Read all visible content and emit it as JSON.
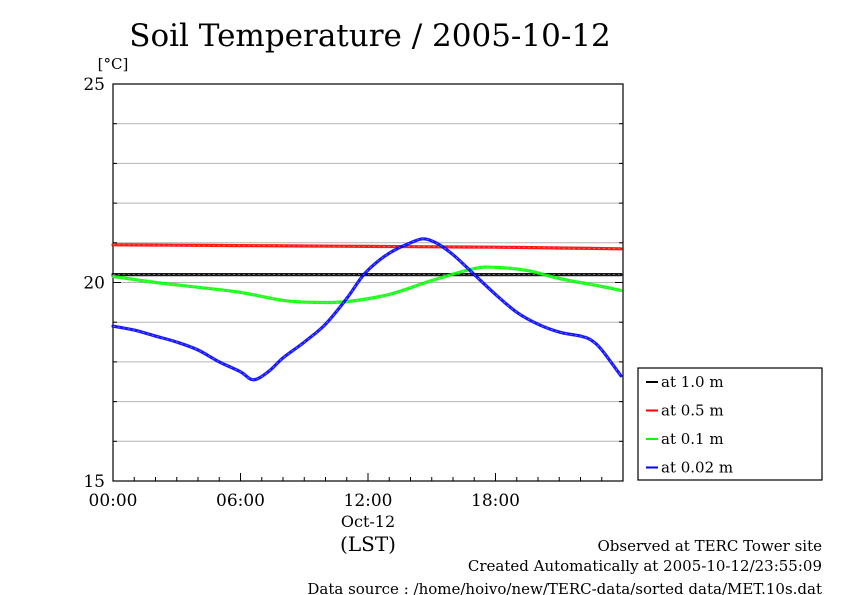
{
  "chart_data": {
    "type": "line",
    "title": "Soil Temperature / 2005-10-12",
    "ylabel": "[°C]",
    "xlabel": "(LST)",
    "x_date_label": "Oct-12",
    "xlim": [
      0,
      24
    ],
    "ylim": [
      15,
      25
    ],
    "x_ticks": [
      0,
      6,
      12,
      18
    ],
    "x_tick_labels": [
      "00:00",
      "06:00",
      "12:00",
      "18:00"
    ],
    "y_ticks": [
      15,
      20,
      25
    ],
    "y_tick_labels": [
      "15",
      "20",
      "25"
    ],
    "grid": "horizontal",
    "legend_position": "right",
    "series": [
      {
        "name": "at 1.0 m",
        "color": "#000000",
        "x": [
          0,
          3,
          6,
          9,
          12,
          15,
          18,
          21,
          23.9
        ],
        "values": [
          20.2,
          20.2,
          20.2,
          20.2,
          20.2,
          20.2,
          20.2,
          20.2,
          20.2
        ]
      },
      {
        "name": "at 0.5 m",
        "color": "#ff0000",
        "x": [
          0,
          3,
          6,
          9,
          12,
          15,
          18,
          21,
          23.9
        ],
        "values": [
          20.95,
          20.94,
          20.93,
          20.92,
          20.91,
          20.9,
          20.89,
          20.87,
          20.85
        ]
      },
      {
        "name": "at 0.1 m",
        "color": "#00ff00",
        "x": [
          0,
          2,
          4,
          6,
          8,
          9.5,
          11,
          13,
          15,
          17,
          18,
          19.5,
          21,
          23,
          23.9
        ],
        "values": [
          20.15,
          20.0,
          19.88,
          19.75,
          19.55,
          19.5,
          19.52,
          19.7,
          20.05,
          20.35,
          20.38,
          20.3,
          20.1,
          19.9,
          19.8
        ]
      },
      {
        "name": "at 0.02 m",
        "color": "#0000ff",
        "x": [
          0,
          1,
          2,
          3,
          4,
          5,
          6,
          6.6,
          7.3,
          8,
          9,
          10,
          11,
          11.8,
          12.5,
          13.2,
          14,
          14.6,
          15.2,
          16,
          17,
          18,
          19,
          20,
          21,
          22,
          22.5,
          23,
          23.9
        ],
        "values": [
          18.9,
          18.8,
          18.65,
          18.5,
          18.3,
          18.0,
          17.75,
          17.55,
          17.75,
          18.1,
          18.5,
          18.95,
          19.6,
          20.2,
          20.55,
          20.8,
          21.0,
          21.1,
          21.0,
          20.7,
          20.2,
          19.7,
          19.25,
          18.95,
          18.75,
          18.65,
          18.55,
          18.3,
          17.65
        ]
      }
    ]
  },
  "footer": {
    "line1": "Observed at TERC Tower site",
    "line2": "Created Automatically at 2005-10-12/23:55:09",
    "line3": "Data source : /home/hoivo/new/TERC-data/sorted  data/MET.10s.dat"
  }
}
